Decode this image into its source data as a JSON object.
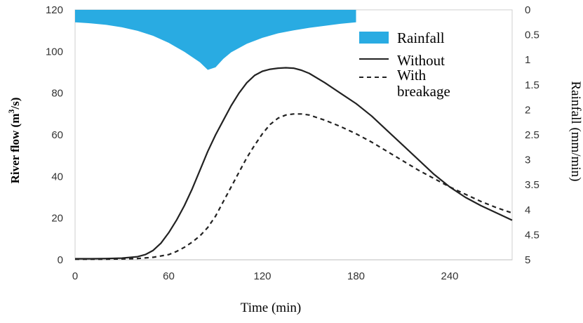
{
  "chart_data": {
    "type": "line",
    "title": "",
    "xlabel": "Time (min)",
    "ylabel_main": "River flow (m",
    "ylabel_sup": "3",
    "ylabel_tail": "/s)",
    "y2label": "Rainfall (mm/min)",
    "xlim": [
      0,
      280
    ],
    "ylim": [
      0,
      120
    ],
    "y2lim": [
      0,
      5
    ],
    "y2_inverted": true,
    "x_ticks": [
      "0",
      "60",
      "120",
      "180",
      "240"
    ],
    "x_tick_values": [
      0,
      60,
      120,
      180,
      240
    ],
    "y_ticks": [
      "0",
      "20",
      "40",
      "60",
      "80",
      "100",
      "120"
    ],
    "y_tick_values": [
      0,
      20,
      40,
      60,
      80,
      100,
      120
    ],
    "y2_ticks": [
      "0",
      "0.5",
      "1",
      "1.5",
      "2",
      "2.5",
      "3",
      "3.5",
      "4",
      "4.5",
      "5"
    ],
    "y2_tick_values": [
      0,
      0.5,
      1,
      1.5,
      2,
      2.5,
      3,
      3.5,
      4,
      4.5,
      5
    ],
    "grid": false,
    "legend_position": "top-right",
    "rainfall": {
      "name": "Rainfall",
      "color": "#29abe2",
      "x": [
        0,
        10,
        20,
        30,
        40,
        50,
        60,
        70,
        80,
        85,
        90,
        95,
        100,
        110,
        120,
        130,
        140,
        150,
        160,
        170,
        180
      ],
      "values": [
        0.25,
        0.27,
        0.3,
        0.35,
        0.42,
        0.52,
        0.66,
        0.84,
        1.05,
        1.2,
        1.15,
        0.98,
        0.85,
        0.68,
        0.56,
        0.47,
        0.41,
        0.36,
        0.32,
        0.28,
        0.25
      ]
    },
    "series": [
      {
        "name": "Without",
        "color": "#222222",
        "dash": "none",
        "x": [
          0,
          10,
          20,
          30,
          40,
          45,
          50,
          55,
          60,
          65,
          70,
          75,
          80,
          85,
          90,
          95,
          100,
          105,
          110,
          115,
          120,
          125,
          130,
          135,
          140,
          145,
          150,
          160,
          170,
          180,
          190,
          200,
          210,
          220,
          230,
          240,
          250,
          260,
          270,
          280
        ],
        "values": [
          0.5,
          0.5,
          0.6,
          0.8,
          1.5,
          2.5,
          4.5,
          8,
          13,
          19,
          26,
          34,
          43,
          52,
          60,
          67,
          74,
          80,
          85,
          88.5,
          90.5,
          91.5,
          92,
          92.2,
          92,
          91,
          89.5,
          85,
          80,
          75,
          69,
          62,
          55,
          48,
          41,
          35,
          30,
          26,
          22.5,
          19
        ]
      },
      {
        "name": "With breakage",
        "color": "#222222",
        "dash": "6,5",
        "x": [
          0,
          10,
          20,
          30,
          40,
          50,
          60,
          65,
          70,
          75,
          80,
          85,
          90,
          95,
          100,
          105,
          110,
          115,
          120,
          125,
          130,
          135,
          140,
          145,
          150,
          160,
          170,
          180,
          190,
          200,
          210,
          220,
          230,
          240,
          250,
          260,
          270,
          280
        ],
        "values": [
          0.3,
          0.3,
          0.3,
          0.4,
          0.6,
          1.2,
          2.5,
          4,
          6,
          8.5,
          11.5,
          15.5,
          21,
          28,
          35,
          42,
          49,
          55,
          60.5,
          65,
          68,
          69.5,
          70,
          70,
          69.5,
          67,
          64,
          60.5,
          56.5,
          52,
          47.5,
          43,
          39,
          35,
          31.5,
          28,
          25,
          22.5
        ]
      }
    ],
    "legend": {
      "rainfall_label": "Rainfall",
      "without_label": "Without",
      "with_label_line1": "With",
      "with_label_line2": "breakage"
    }
  }
}
